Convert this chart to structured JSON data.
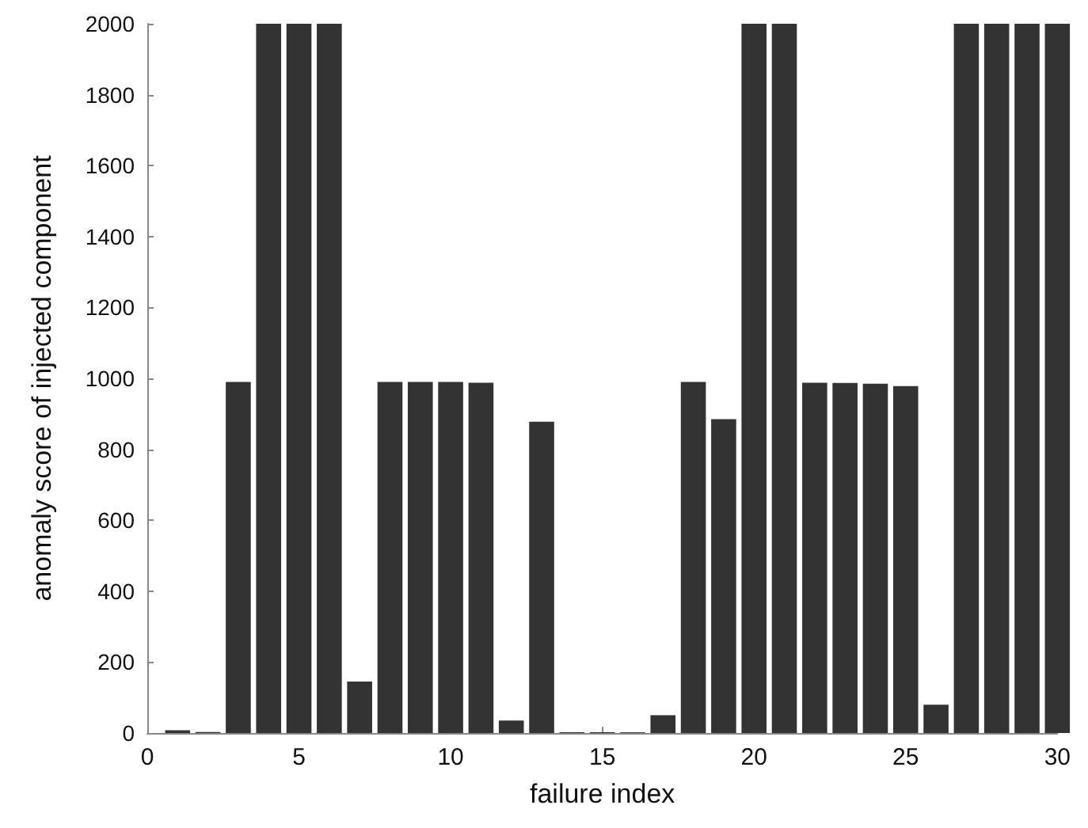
{
  "chart_data": {
    "type": "bar",
    "xlabel": "failure index",
    "ylabel": "anomaly score of injected component",
    "x": [
      1,
      2,
      3,
      4,
      5,
      6,
      7,
      8,
      9,
      10,
      11,
      12,
      13,
      14,
      15,
      16,
      17,
      18,
      19,
      20,
      21,
      22,
      23,
      24,
      25,
      26,
      27,
      28,
      29,
      30
    ],
    "values": [
      8,
      3,
      990,
      2000,
      2000,
      2000,
      145,
      990,
      990,
      990,
      988,
      35,
      878,
      2,
      2,
      2,
      50,
      990,
      885,
      2000,
      2000,
      988,
      987,
      985,
      978,
      80,
      2000,
      2000,
      2000,
      2000
    ],
    "color": "#333333",
    "xlim": [
      0,
      30
    ],
    "xticks": [
      0,
      5,
      10,
      15,
      20,
      25,
      30
    ],
    "ylim": [
      0,
      2000
    ],
    "yticks": [
      0,
      200,
      400,
      600,
      800,
      1000,
      1200,
      1400,
      1600,
      1800,
      2000
    ],
    "grid": false
  }
}
